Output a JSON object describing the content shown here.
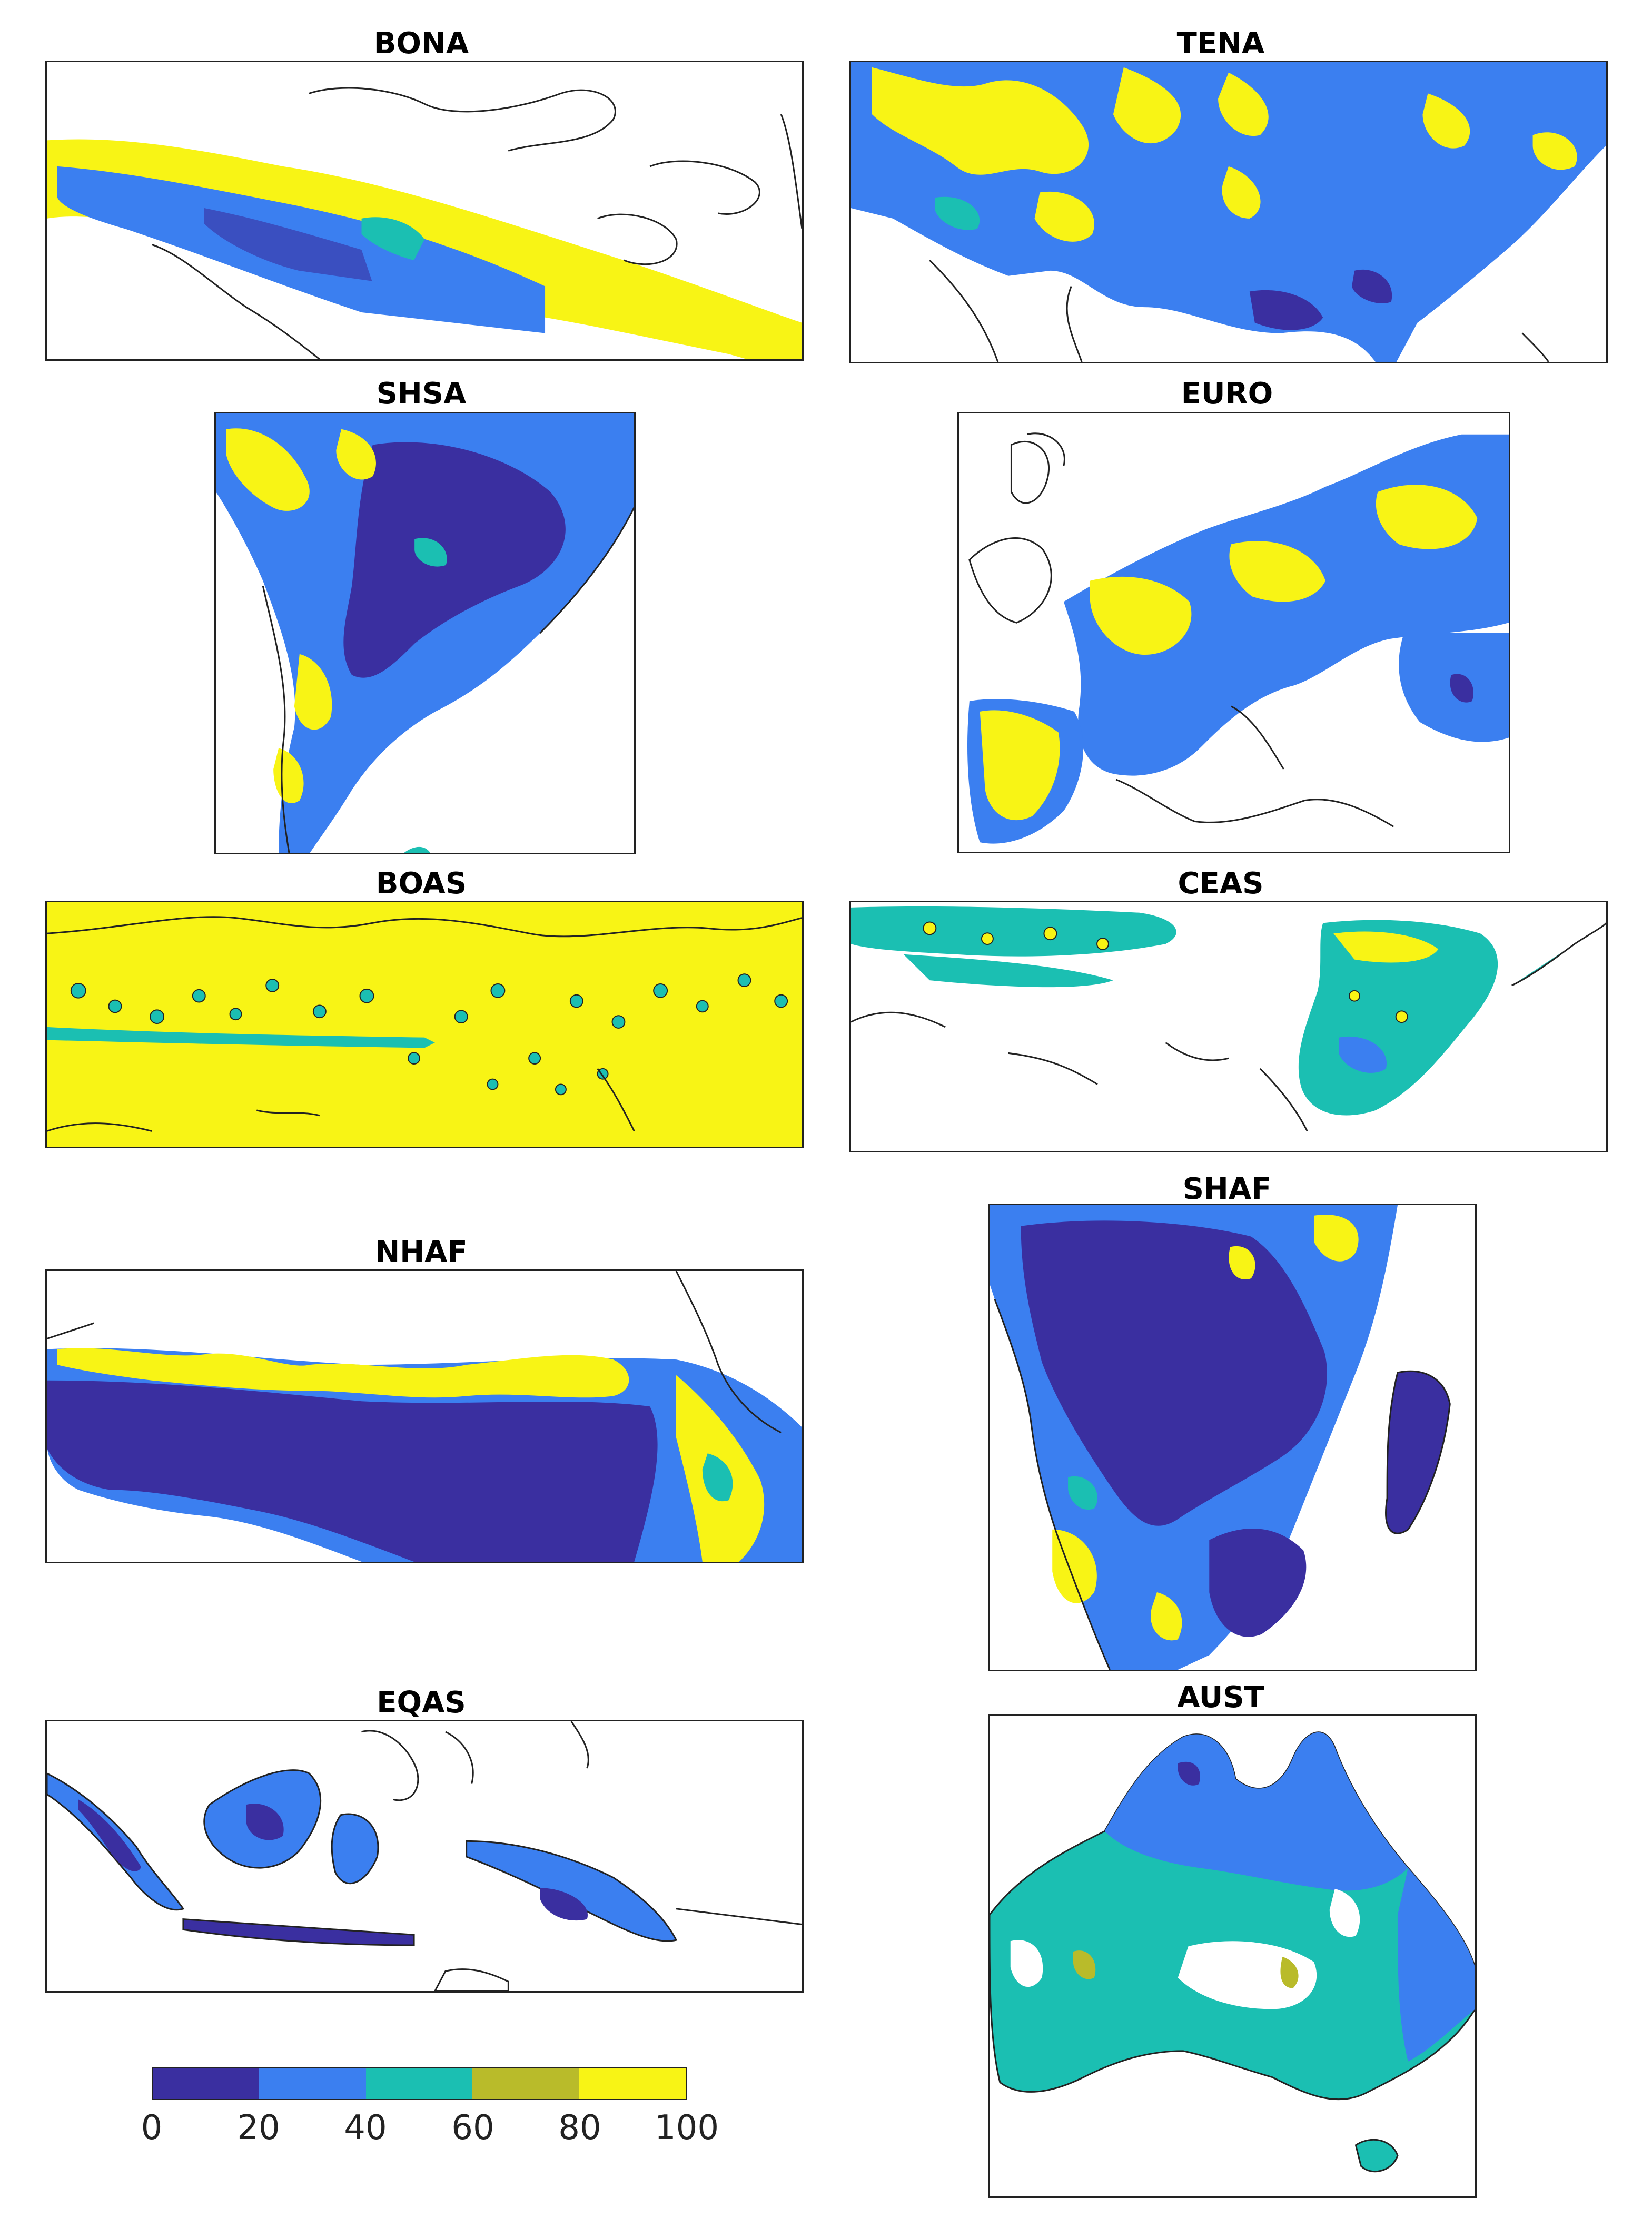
{
  "colors": {
    "class_0_20": "#3a2fa0",
    "class_20_40": "#3b7ff0",
    "class_40_60": "#1bbfb2",
    "class_60_80": "#b9bb2a",
    "class_80_100": "#f8f415",
    "coastline": "#222222",
    "land_no_data": "#ffffff"
  },
  "panels": [
    {
      "id": "bona",
      "title": "BONA"
    },
    {
      "id": "tena",
      "title": "TENA"
    },
    {
      "id": "shsa",
      "title": "SHSA"
    },
    {
      "id": "euro",
      "title": "EURO"
    },
    {
      "id": "boas",
      "title": "BOAS"
    },
    {
      "id": "ceas",
      "title": "CEAS"
    },
    {
      "id": "nhaf",
      "title": "NHAF"
    },
    {
      "id": "shaf",
      "title": "SHAF"
    },
    {
      "id": "eqas",
      "title": "EQAS"
    },
    {
      "id": "aust",
      "title": "AUST"
    }
  ],
  "colorbar": {
    "ticks": [
      "0",
      "20",
      "40",
      "60",
      "80",
      "100"
    ],
    "segments": [
      "0-20",
      "20-40",
      "40-60",
      "60-80",
      "80-100"
    ]
  }
}
